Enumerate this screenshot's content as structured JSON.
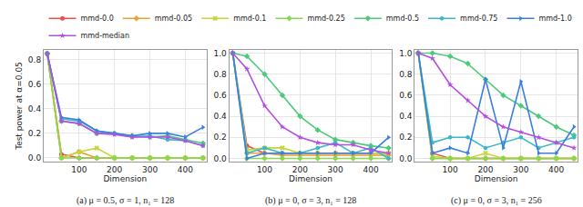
{
  "chart_data": [
    {
      "type": "line",
      "title": "(a) μ = 0.5, σ = 1, n₁ = 128",
      "x_label": "Dimension",
      "y_label": "Test power at α=0.05",
      "grid": true,
      "legend": "top",
      "x": [
        10,
        50,
        100,
        150,
        200,
        250,
        300,
        350,
        400,
        450
      ],
      "xlim": [
        0,
        460
      ],
      "xticks": [
        100,
        200,
        300,
        400
      ],
      "ylim": [
        -0.03,
        0.88
      ],
      "yticks": [
        {
          "value": 0,
          "label": "0.0"
        },
        0.2,
        0.4,
        0.6,
        0.8
      ],
      "series": [
        {
          "name": "mmd-0.0",
          "color": "#e8534b",
          "marker": "circle",
          "values": [
            0.85,
            0.03,
            0.0,
            0.0,
            0.0,
            0.0,
            0.0,
            0.0,
            0.0,
            0.0
          ]
        },
        {
          "name": "mmd-0.05",
          "color": "#f0a030",
          "marker": "diamond",
          "values": [
            0.85,
            0.0,
            0.05,
            0.0,
            0.0,
            0.0,
            0.0,
            0.0,
            0.0,
            0.0
          ]
        },
        {
          "name": "mmd-0.1",
          "color": "#c5d63a",
          "marker": "x",
          "values": [
            0.85,
            0.0,
            0.05,
            0.08,
            0.0,
            0.0,
            0.0,
            0.0,
            0.0,
            0.0
          ]
        },
        {
          "name": "mmd-0.25",
          "color": "#86d94e",
          "marker": "diamond",
          "values": [
            0.85,
            0.0,
            0.0,
            0.0,
            0.0,
            0.0,
            0.0,
            0.0,
            0.0,
            0.0
          ]
        },
        {
          "name": "mmd-0.5",
          "color": "#4fc97a",
          "marker": "diamond",
          "values": [
            0.85,
            0.3,
            0.28,
            0.2,
            0.2,
            0.18,
            0.17,
            0.18,
            0.15,
            0.12
          ]
        },
        {
          "name": "mmd-0.75",
          "color": "#3cb9c8",
          "marker": "hexagon",
          "values": [
            0.85,
            0.32,
            0.3,
            0.22,
            0.2,
            0.17,
            0.18,
            0.15,
            0.14,
            0.1
          ]
        },
        {
          "name": "mmd-1.0",
          "color": "#3a7fe0",
          "marker": "triangle-right",
          "values": [
            0.85,
            0.33,
            0.31,
            0.22,
            0.2,
            0.18,
            0.2,
            0.2,
            0.17,
            0.25
          ]
        },
        {
          "name": "mmd-median",
          "color": "#b44fe0",
          "marker": "star",
          "values": [
            0.85,
            0.3,
            0.28,
            0.2,
            0.19,
            0.17,
            0.17,
            0.17,
            0.14,
            0.1
          ]
        }
      ]
    },
    {
      "type": "line",
      "title": "(b) μ = 0, σ = 3, n₁ = 128",
      "x_label": "Dimension",
      "grid": true,
      "x": [
        10,
        50,
        100,
        150,
        200,
        250,
        300,
        350,
        400,
        450
      ],
      "xlim": [
        0,
        460
      ],
      "xticks": [
        100,
        200,
        300,
        400
      ],
      "ylim": [
        -0.03,
        1.03
      ],
      "yticks": [
        {
          "value": 0,
          "label": "0.0"
        },
        0.2,
        0.4,
        0.6,
        0.8,
        {
          "value": 1,
          "label": "1.0"
        }
      ],
      "series": [
        {
          "name": "mmd-0.0",
          "color": "#e8534b",
          "marker": "circle",
          "values": [
            1.0,
            0.12,
            0.05,
            0.05,
            0.05,
            0.05,
            0.05,
            0.05,
            0.05,
            0.05
          ]
        },
        {
          "name": "mmd-0.05",
          "color": "#f0a030",
          "marker": "diamond",
          "values": [
            1.0,
            0.05,
            0.05,
            0.03,
            0.03,
            0.03,
            0.03,
            0.03,
            0.03,
            0.03
          ]
        },
        {
          "name": "mmd-0.1",
          "color": "#c5d63a",
          "marker": "x",
          "values": [
            1.0,
            0.08,
            0.1,
            0.1,
            0.05,
            0.05,
            0.05,
            0.05,
            0.05,
            0.05
          ]
        },
        {
          "name": "mmd-0.25",
          "color": "#86d94e",
          "marker": "diamond",
          "values": [
            1.0,
            0.0,
            0.0,
            0.0,
            0.0,
            0.0,
            0.0,
            0.0,
            0.0,
            0.0
          ]
        },
        {
          "name": "mmd-0.5",
          "color": "#4fc97a",
          "marker": "diamond",
          "values": [
            1.0,
            0.97,
            0.8,
            0.6,
            0.4,
            0.27,
            0.18,
            0.15,
            0.12,
            0.1
          ]
        },
        {
          "name": "mmd-0.75",
          "color": "#3cb9c8",
          "marker": "hexagon",
          "values": [
            1.0,
            0.05,
            0.1,
            0.05,
            0.05,
            0.1,
            0.15,
            0.05,
            0.1,
            0.0
          ]
        },
        {
          "name": "mmd-1.0",
          "color": "#3a7fe0",
          "marker": "triangle-right",
          "values": [
            1.0,
            0.0,
            0.05,
            0.05,
            0.05,
            0.05,
            0.05,
            0.05,
            0.05,
            0.2
          ]
        },
        {
          "name": "mmd-median",
          "color": "#b44fe0",
          "marker": "star",
          "values": [
            1.0,
            0.85,
            0.5,
            0.3,
            0.2,
            0.15,
            0.13,
            0.13,
            0.08,
            0.05
          ]
        }
      ]
    },
    {
      "type": "line",
      "title": "(c) μ = 0, σ = 3, n₁ = 256",
      "x_label": "Dimension",
      "grid": true,
      "x": [
        10,
        50,
        100,
        150,
        200,
        250,
        300,
        350,
        400,
        450
      ],
      "xlim": [
        0,
        460
      ],
      "xticks": [
        100,
        200,
        300,
        400
      ],
      "ylim": [
        -0.03,
        1.03
      ],
      "yticks": [
        {
          "value": 0,
          "label": "0.0"
        },
        0.2,
        0.4,
        0.6,
        0.8,
        {
          "value": 1,
          "label": "1.0"
        }
      ],
      "series": [
        {
          "name": "mmd-0.0",
          "color": "#e8534b",
          "marker": "circle",
          "values": [
            1.0,
            0.05,
            0.0,
            0.0,
            0.0,
            0.0,
            0.0,
            0.0,
            0.0,
            0.0
          ]
        },
        {
          "name": "mmd-0.05",
          "color": "#f0a030",
          "marker": "diamond",
          "values": [
            1.0,
            0.0,
            0.0,
            0.0,
            0.0,
            0.0,
            0.0,
            0.0,
            0.0,
            0.0
          ]
        },
        {
          "name": "mmd-0.1",
          "color": "#c5d63a",
          "marker": "x",
          "values": [
            1.0,
            0.02,
            0.0,
            0.0,
            0.05,
            0.0,
            0.0,
            0.0,
            0.0,
            0.0
          ]
        },
        {
          "name": "mmd-0.25",
          "color": "#86d94e",
          "marker": "diamond",
          "values": [
            1.0,
            0.0,
            0.0,
            0.0,
            0.0,
            0.0,
            0.0,
            0.0,
            0.0,
            0.0
          ]
        },
        {
          "name": "mmd-0.5",
          "color": "#4fc97a",
          "marker": "diamond",
          "values": [
            1.0,
            1.0,
            0.97,
            0.9,
            0.75,
            0.6,
            0.5,
            0.4,
            0.3,
            0.22
          ]
        },
        {
          "name": "mmd-0.75",
          "color": "#3cb9c8",
          "marker": "hexagon",
          "values": [
            1.0,
            0.15,
            0.2,
            0.2,
            0.1,
            0.15,
            0.2,
            0.1,
            0.15,
            0.2
          ]
        },
        {
          "name": "mmd-1.0",
          "color": "#3a7fe0",
          "marker": "triangle-right",
          "values": [
            1.0,
            0.05,
            0.1,
            0.05,
            0.75,
            0.1,
            0.73,
            0.05,
            0.05,
            0.3
          ]
        },
        {
          "name": "mmd-median",
          "color": "#b44fe0",
          "marker": "star",
          "values": [
            1.0,
            0.95,
            0.7,
            0.55,
            0.4,
            0.3,
            0.25,
            0.2,
            0.15,
            0.1
          ]
        }
      ]
    }
  ]
}
